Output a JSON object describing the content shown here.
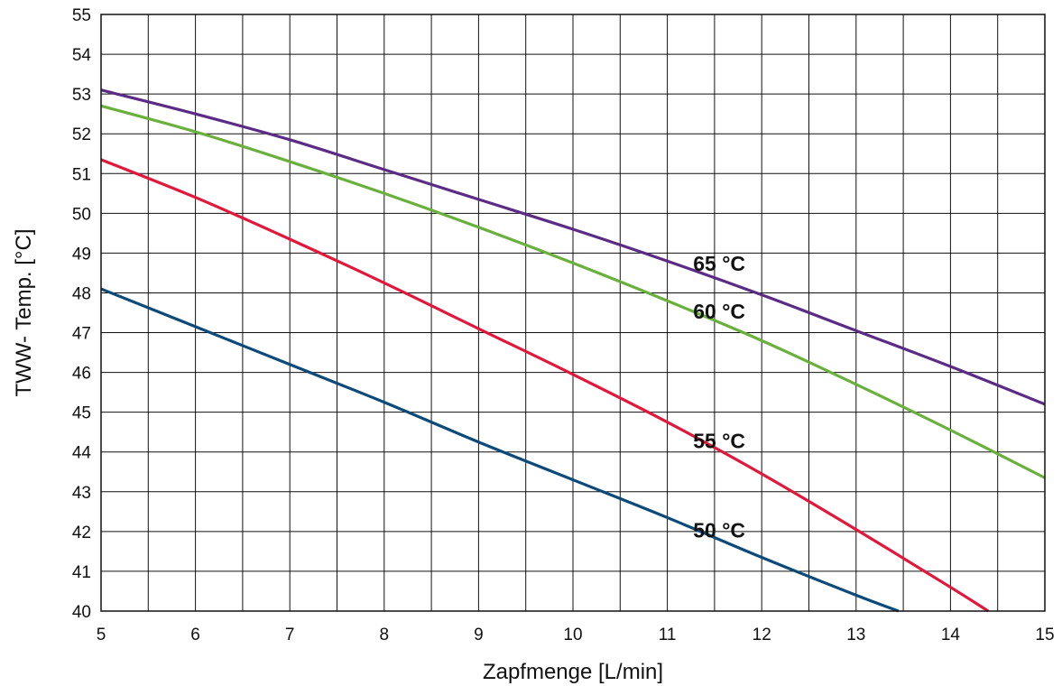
{
  "chart_data": {
    "type": "line",
    "xlabel": "Zapfmenge [L/min]",
    "ylabel": "TWW- Temp. [°C]",
    "xlim": [
      5,
      15
    ],
    "ylim": [
      40,
      55
    ],
    "xticks": [
      "5",
      "6",
      "7",
      "8",
      "9",
      "10",
      "11",
      "12",
      "13",
      "14",
      "15"
    ],
    "yticks": [
      "40",
      "41",
      "42",
      "43",
      "44",
      "45",
      "46",
      "47",
      "48",
      "49",
      "50",
      "51",
      "52",
      "53",
      "54",
      "55"
    ],
    "grid": true,
    "x_minor_step": 0.5,
    "series": [
      {
        "name": "65 °C",
        "color": "#5b2c86",
        "x": [
          5,
          6,
          7,
          8,
          9,
          10,
          11,
          12,
          13,
          14,
          15
        ],
        "y": [
          53.1,
          52.5,
          51.85,
          51.1,
          50.35,
          49.6,
          48.8,
          47.95,
          47.05,
          46.15,
          45.2
        ]
      },
      {
        "name": "60 °C",
        "color": "#6ab03c",
        "x": [
          5,
          6,
          7,
          8,
          9,
          10,
          11,
          12,
          13,
          14,
          15
        ],
        "y": [
          52.7,
          52.05,
          51.3,
          50.5,
          49.65,
          48.75,
          47.8,
          46.8,
          45.7,
          44.55,
          43.35
        ]
      },
      {
        "name": "55 °C",
        "color": "#e2173c",
        "x": [
          5,
          6,
          7,
          8,
          9,
          10,
          11,
          12,
          13,
          14,
          14.4
        ],
        "y": [
          51.35,
          50.4,
          49.35,
          48.25,
          47.1,
          45.95,
          44.75,
          43.45,
          42.05,
          40.6,
          40.0
        ]
      },
      {
        "name": "50 °C",
        "color": "#0c4a7a",
        "x": [
          5,
          6,
          7,
          8,
          9,
          10,
          11,
          12,
          13,
          13.45
        ],
        "y": [
          48.1,
          47.15,
          46.2,
          45.25,
          44.25,
          43.3,
          42.35,
          41.35,
          40.4,
          40.0
        ]
      }
    ],
    "annotations": [
      {
        "text": "65 °C",
        "x": 11.55,
        "y": 48.55
      },
      {
        "text": "60 °C",
        "x": 11.55,
        "y": 47.35
      },
      {
        "text": "55 °C",
        "x": 11.55,
        "y": 44.1
      },
      {
        "text": "50 °C",
        "x": 11.55,
        "y": 41.85
      }
    ]
  }
}
